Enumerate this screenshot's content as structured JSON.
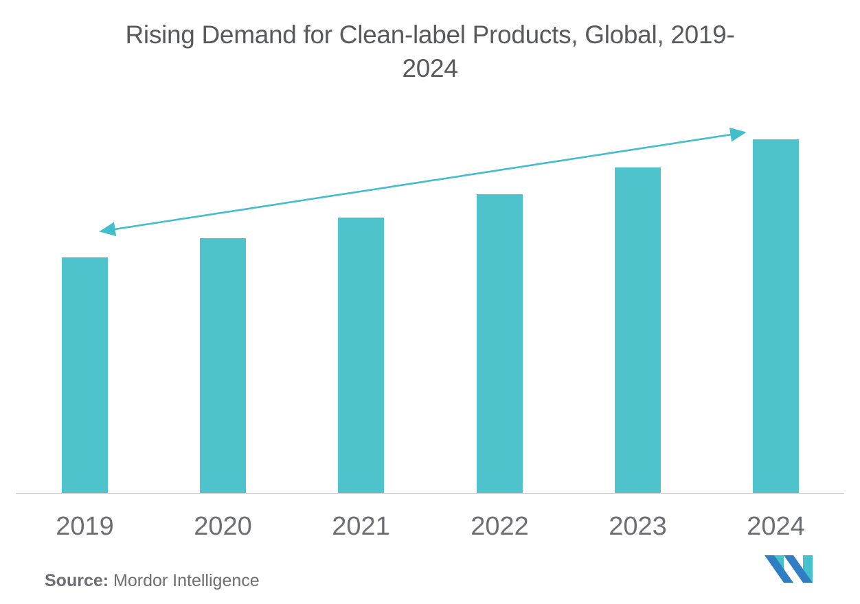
{
  "page": {
    "title_lines": {
      "line1": "Rising Demand for Clean-label Products, Global, 2019-",
      "line2": "2024"
    },
    "source_label": "Source:",
    "source_value": "Mordor Intelligence",
    "logo_alt": "Mordor Intelligence logo",
    "colors": {
      "bar": "#4EC3CB",
      "arrow": "#41BEC9",
      "title_text": "#58595B",
      "axis_label_text": "#6D6E71",
      "source_text": "#6D6E71",
      "baseline": "#D6D6D6",
      "logo_blue": "#2F7EC2",
      "logo_teal": "#44C2CE",
      "background": "#FFFFFF"
    }
  },
  "chart_data": {
    "type": "bar",
    "title": "Rising Demand for Clean-label Products, Global, 2019-2024",
    "categories": [
      "2019",
      "2020",
      "2021",
      "2022",
      "2023",
      "2024"
    ],
    "values": [
      66.7,
      72.1,
      77.9,
      84.5,
      92.1,
      100
    ],
    "value_note": "No y-axis shown in figure; values are an index estimated from relative bar heights with 2024 = 100.",
    "xlabel": "",
    "ylabel": "",
    "ylim": [
      0,
      110
    ],
    "grid": false,
    "legend": false,
    "y_axis_visible": false,
    "bar_color": "#4EC3CB",
    "annotations": [
      {
        "type": "double-headed-arrow",
        "from_category": "2019",
        "to_category": "2024",
        "meaning": "rising trend from 2019 bar top to 2024 bar top",
        "color": "#41BEC9"
      }
    ],
    "source": "Mordor Intelligence"
  }
}
